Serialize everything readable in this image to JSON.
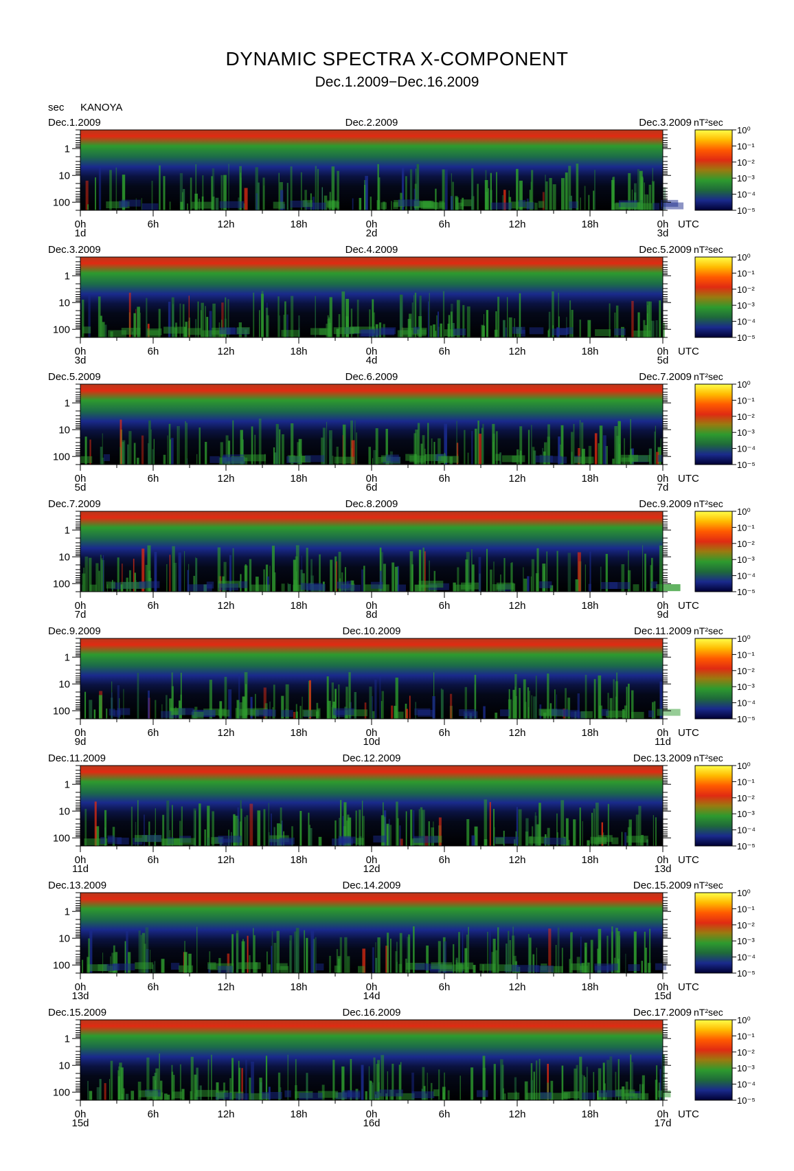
{
  "title": "DYNAMIC SPECTRA X-COMPONENT",
  "subtitle": "Dec.1.2009−Dec.16.2009",
  "station": {
    "unit_label": "sec",
    "name": "KANOYA"
  },
  "colors": {
    "background": "#000000",
    "low": "#000033",
    "blue": "#1a2a8c",
    "green": "#2e9a2e",
    "red": "#e02b12",
    "top": "#b8391c"
  },
  "chart_data": {
    "type": "heatmap",
    "x_unit_label": "UTC",
    "x_tick_labels": [
      "0h",
      "6h",
      "12h",
      "18h",
      "0h",
      "6h",
      "12h",
      "18h",
      "0h"
    ],
    "y_unit_label": "sec",
    "y_axis": {
      "scale": "log",
      "range": [
        0.2,
        200
      ],
      "tick_labels": [
        "1",
        "10",
        "100"
      ]
    },
    "colorbar": {
      "unit_label": "nT²sec",
      "scale": "log",
      "range": [
        1e-05,
        1
      ],
      "tick_labels": [
        "10⁰",
        "10⁻¹",
        "10⁻²",
        "10⁻³",
        "10⁻⁴",
        "10⁻⁵"
      ],
      "colors": [
        "#ffff4a",
        "#ffbb00",
        "#ff5a00",
        "#e02b12",
        "#9a7a10",
        "#2e9a2e",
        "#1f6a3a",
        "#1a2a8c",
        "#000033"
      ]
    },
    "panels": [
      {
        "left_date": "Dec.1.2009",
        "mid_date": "Dec.2.2009",
        "right_date": "Dec.3.2009",
        "day_start": "1d",
        "day_mid": "2d",
        "day_end": "3d"
      },
      {
        "left_date": "Dec.3.2009",
        "mid_date": "Dec.4.2009",
        "right_date": "Dec.5.2009",
        "day_start": "3d",
        "day_mid": "4d",
        "day_end": "5d"
      },
      {
        "left_date": "Dec.5.2009",
        "mid_date": "Dec.6.2009",
        "right_date": "Dec.7.2009",
        "day_start": "5d",
        "day_mid": "6d",
        "day_end": "7d"
      },
      {
        "left_date": "Dec.7.2009",
        "mid_date": "Dec.8.2009",
        "right_date": "Dec.9.2009",
        "day_start": "7d",
        "day_mid": "8d",
        "day_end": "9d"
      },
      {
        "left_date": "Dec.9.2009",
        "mid_date": "Dec.10.2009",
        "right_date": "Dec.11.2009",
        "day_start": "9d",
        "day_mid": "10d",
        "day_end": "11d"
      },
      {
        "left_date": "Dec.11.2009",
        "mid_date": "Dec.12.2009",
        "right_date": "Dec.13.2009",
        "day_start": "11d",
        "day_mid": "12d",
        "day_end": "13d"
      },
      {
        "left_date": "Dec.13.2009",
        "mid_date": "Dec.14.2009",
        "right_date": "Dec.15.2009",
        "day_start": "13d",
        "day_mid": "14d",
        "day_end": "15d"
      },
      {
        "left_date": "Dec.15.2009",
        "mid_date": "Dec.16.2009",
        "right_date": "Dec.17.2009",
        "day_start": "15d",
        "day_mid": "16d",
        "day_end": "17d"
      }
    ]
  }
}
